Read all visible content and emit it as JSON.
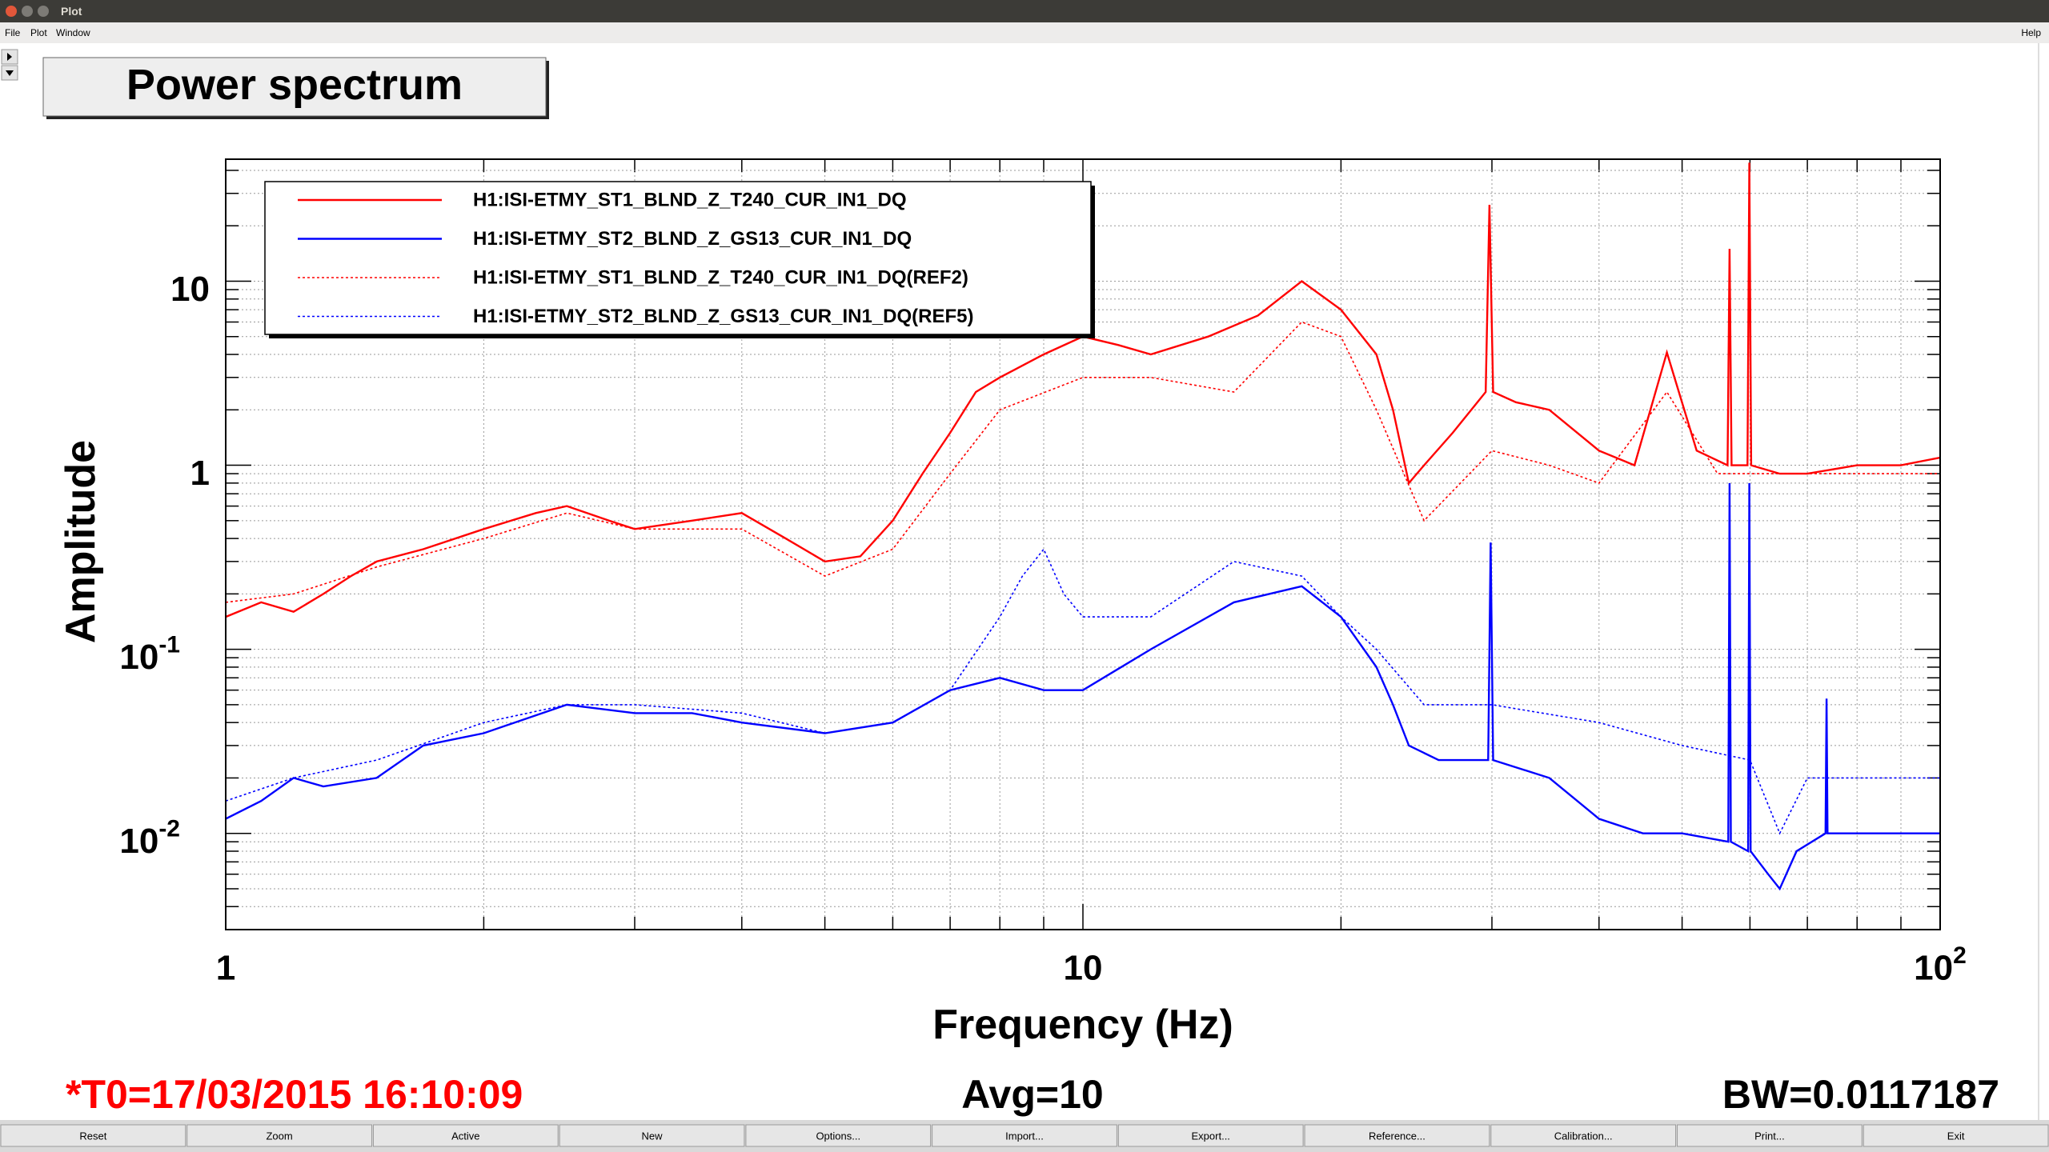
{
  "window": {
    "title": "Plot",
    "menu": [
      "File",
      "Plot",
      "Window"
    ],
    "help": "Help"
  },
  "buttons": [
    "Reset",
    "Zoom",
    "Active",
    "New",
    "Options...",
    "Import...",
    "Export...",
    "Reference...",
    "Calibration...",
    "Print...",
    "Exit"
  ],
  "chart_data": {
    "type": "line",
    "title": "Power spectrum",
    "x_label": "Frequency (Hz)",
    "y_label": "Amplitude",
    "xlog": true,
    "ylog": true,
    "grid": true,
    "legend": "upper left",
    "xlim": [
      1,
      100
    ],
    "ylim": [
      0.003,
      46
    ],
    "xticks": [
      1,
      10,
      {
        "value": 100,
        "label": "10",
        "exponent": "2"
      }
    ],
    "yticks": [
      {
        "value": 0.01,
        "label": "10",
        "exponent": "-2"
      },
      {
        "value": 0.1,
        "label": "10",
        "exponent": "-1"
      },
      1,
      10
    ],
    "xminor": [
      2,
      3,
      4,
      5,
      6,
      7,
      8,
      9,
      20,
      30,
      40,
      50,
      60,
      70,
      80,
      90
    ],
    "yminor": [
      0.004,
      0.005,
      0.006,
      0.007,
      0.008,
      0.009,
      0.02,
      0.03,
      0.04,
      0.05,
      0.06,
      0.07,
      0.08,
      0.09,
      0.2,
      0.3,
      0.4,
      0.5,
      0.6,
      0.7,
      0.8,
      0.9,
      2,
      3,
      4,
      5,
      6,
      7,
      8,
      9,
      20,
      30,
      40
    ],
    "annotations": [
      "*T0=17/03/2015 16:10:09",
      "Avg=10",
      "BW=0.0117187"
    ],
    "annotation_colors": [
      "#ff0000",
      "#000000",
      "#000000"
    ],
    "series": [
      {
        "name": "H1:ISI-ETMY_ST1_BLND_Z_T240_CUR_IN1_DQ",
        "color": "#ff0000",
        "style": "solid",
        "x": [
          1,
          1.1,
          1.2,
          1.3,
          1.4,
          1.5,
          1.7,
          2,
          2.3,
          2.5,
          2.8,
          3,
          3.5,
          4,
          4.5,
          5,
          5.5,
          6,
          6.5,
          7,
          7.5,
          8,
          9,
          10,
          11,
          12,
          14,
          16,
          18,
          20,
          22,
          23,
          24,
          25,
          27,
          29.5,
          29.8,
          30.1,
          32,
          35,
          40,
          44,
          48,
          52,
          56.5,
          56.8,
          57.1,
          59.6,
          59.9,
          60.2,
          65,
          70,
          80,
          90,
          100
        ],
        "values": [
          0.15,
          0.18,
          0.16,
          0.2,
          0.25,
          0.3,
          0.35,
          0.45,
          0.55,
          0.6,
          0.5,
          0.45,
          0.5,
          0.55,
          0.4,
          0.3,
          0.32,
          0.5,
          0.9,
          1.5,
          2.5,
          3,
          4,
          5,
          4.5,
          4,
          5,
          6.5,
          10,
          7,
          4,
          2,
          0.8,
          1,
          1.5,
          2.5,
          26,
          2.5,
          2.2,
          2,
          1.2,
          1,
          4.1,
          1.2,
          1,
          15,
          1,
          1,
          44,
          1,
          0.9,
          0.9,
          1,
          1,
          1.1
        ]
      },
      {
        "name": "H1:ISI-ETMY_ST2_BLND_Z_GS13_CUR_IN1_DQ",
        "color": "#0000ff",
        "style": "solid",
        "x": [
          1,
          1.1,
          1.2,
          1.3,
          1.5,
          1.7,
          2,
          2.5,
          3,
          3.5,
          4,
          5,
          6,
          7,
          8,
          9,
          10,
          12,
          15,
          18,
          20,
          22,
          23,
          24,
          26,
          29.7,
          29.9,
          30.1,
          35,
          40,
          45,
          50,
          56.6,
          56.8,
          57,
          59.7,
          59.9,
          60.1,
          63,
          65,
          68,
          73.5,
          73.7,
          73.9,
          80,
          90,
          100
        ],
        "values": [
          0.012,
          0.015,
          0.02,
          0.018,
          0.02,
          0.03,
          0.035,
          0.05,
          0.045,
          0.045,
          0.04,
          0.035,
          0.04,
          0.06,
          0.07,
          0.06,
          0.06,
          0.1,
          0.18,
          0.22,
          0.15,
          0.08,
          0.05,
          0.03,
          0.025,
          0.025,
          0.38,
          0.025,
          0.02,
          0.012,
          0.01,
          0.01,
          0.009,
          0.8,
          0.009,
          0.008,
          0.8,
          0.008,
          0.006,
          0.005,
          0.008,
          0.01,
          0.054,
          0.01,
          0.01,
          0.01,
          0.01
        ]
      },
      {
        "name": "H1:ISI-ETMY_ST1_BLND_Z_T240_CUR_IN1_DQ(REF2)",
        "color": "#ff0000",
        "style": "dotted",
        "x": [
          1,
          1.2,
          1.5,
          2,
          2.5,
          3,
          4,
          5,
          6,
          7,
          8,
          10,
          12,
          15,
          18,
          20,
          22,
          25,
          30,
          35,
          40,
          48,
          55,
          70,
          100
        ],
        "values": [
          0.18,
          0.2,
          0.28,
          0.4,
          0.55,
          0.45,
          0.45,
          0.25,
          0.35,
          0.9,
          2,
          3,
          3,
          2.5,
          6,
          5,
          2,
          0.5,
          1.2,
          1,
          0.8,
          2.5,
          0.9,
          0.9,
          0.9
        ]
      },
      {
        "name": "H1:ISI-ETMY_ST2_BLND_Z_GS13_CUR_IN1_DQ(REF5)",
        "color": "#0000ff",
        "style": "dotted",
        "x": [
          1,
          1.2,
          1.5,
          2,
          2.5,
          3,
          4,
          5,
          6,
          7,
          8,
          8.5,
          9,
          9.5,
          10,
          12,
          15,
          18,
          20,
          22,
          25,
          30,
          40,
          50,
          60,
          65,
          70,
          80,
          100
        ],
        "values": [
          0.015,
          0.02,
          0.025,
          0.04,
          0.05,
          0.05,
          0.045,
          0.035,
          0.04,
          0.06,
          0.15,
          0.25,
          0.35,
          0.2,
          0.15,
          0.15,
          0.3,
          0.25,
          0.15,
          0.1,
          0.05,
          0.05,
          0.04,
          0.03,
          0.025,
          0.01,
          0.02,
          0.02,
          0.02
        ]
      }
    ]
  }
}
